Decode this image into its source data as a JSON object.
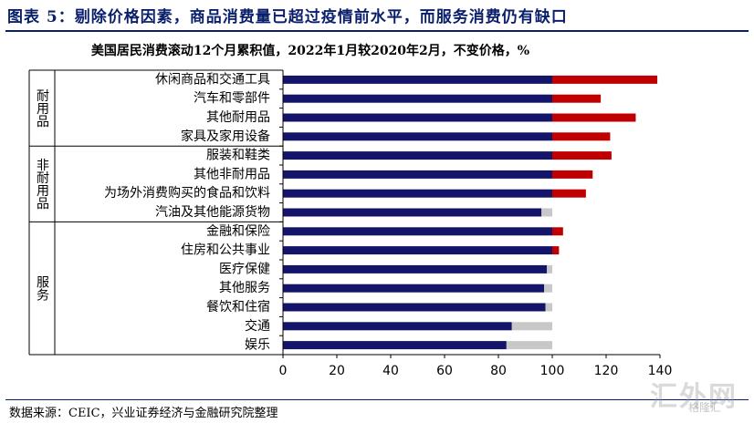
{
  "figure_title": "图表 5：剔除价格因素，商品消费量已超过疫情前水平，而服务消费仍有缺口",
  "source_note": "数据来源：CEIC，兴业证券经济与金融研究院整理",
  "watermark": "汇外网",
  "watermark_sub": "格隆汇",
  "chart_data": {
    "type": "bar",
    "orientation": "horizontal",
    "title": "美国居民消费滚动12个月累积值，2022年1月较2020年2月，不变价格，%",
    "xlim": [
      0,
      140
    ],
    "xticks": [
      "0",
      "20",
      "40",
      "60",
      "80",
      "100",
      "120",
      "140"
    ],
    "colors": {
      "base": "#14146b",
      "above": "#c00000",
      "gap": "#c8c8c8"
    },
    "groups": [
      {
        "name": "耐用品",
        "items": [
          {
            "category": "休闲商品和交通工具",
            "value": 139
          },
          {
            "category": "汽车和零部件",
            "value": 118
          },
          {
            "category": "其他耐用品",
            "value": 131
          },
          {
            "category": "家具及家用设备",
            "value": 121.5
          }
        ]
      },
      {
        "name": "非耐用品",
        "items": [
          {
            "category": "服装和鞋类",
            "value": 122
          },
          {
            "category": "其他非耐用品",
            "value": 115
          },
          {
            "category": "为场外消费购买的食品和饮料",
            "value": 112.5
          },
          {
            "category": "汽油及其他能源货物",
            "value": 96
          }
        ]
      },
      {
        "name": "服务",
        "items": [
          {
            "category": "金融和保险",
            "value": 104
          },
          {
            "category": "住房和公共事业",
            "value": 102.5
          },
          {
            "category": "医疗保健",
            "value": 98
          },
          {
            "category": "其他服务",
            "value": 97
          },
          {
            "category": "餐饮和住宿",
            "value": 97.5
          },
          {
            "category": "交通",
            "value": 85
          },
          {
            "category": "娱乐",
            "value": 83
          }
        ]
      }
    ]
  }
}
